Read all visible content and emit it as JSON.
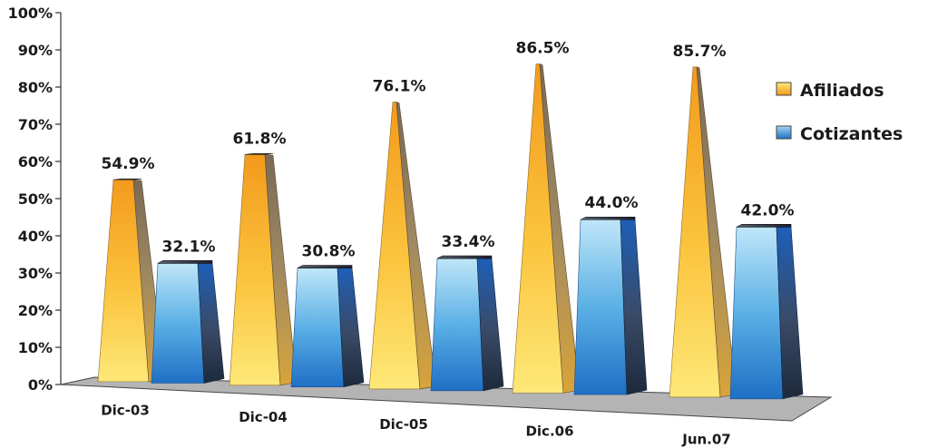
{
  "chart_data": {
    "type": "bar",
    "title": "",
    "xlabel": "",
    "ylabel": "",
    "ylim": [
      0,
      100
    ],
    "y_ticks": [
      "0%",
      "10%",
      "20%",
      "30%",
      "40%",
      "50%",
      "60%",
      "70%",
      "80%",
      "90%",
      "100%"
    ],
    "categories": [
      "Dic-03",
      "Dic-04",
      "Dic-05",
      "Dic.06",
      "Jun.07"
    ],
    "series": [
      {
        "name": "Afiliados",
        "values": [
          54.9,
          61.8,
          76.1,
          86.5,
          85.7
        ],
        "labels": [
          "54.9%",
          "61.8%",
          "76.1%",
          "86.5%",
          "85.7%"
        ],
        "color": "#f5b52a"
      },
      {
        "name": "Cotizantes",
        "values": [
          32.1,
          30.8,
          33.4,
          44.0,
          42.0
        ],
        "labels": [
          "32.1%",
          "30.8%",
          "33.4%",
          "44.0%",
          "42.0%"
        ],
        "color": "#2f86d8"
      }
    ],
    "legend_position": "right",
    "grid": false,
    "style": "3d"
  }
}
